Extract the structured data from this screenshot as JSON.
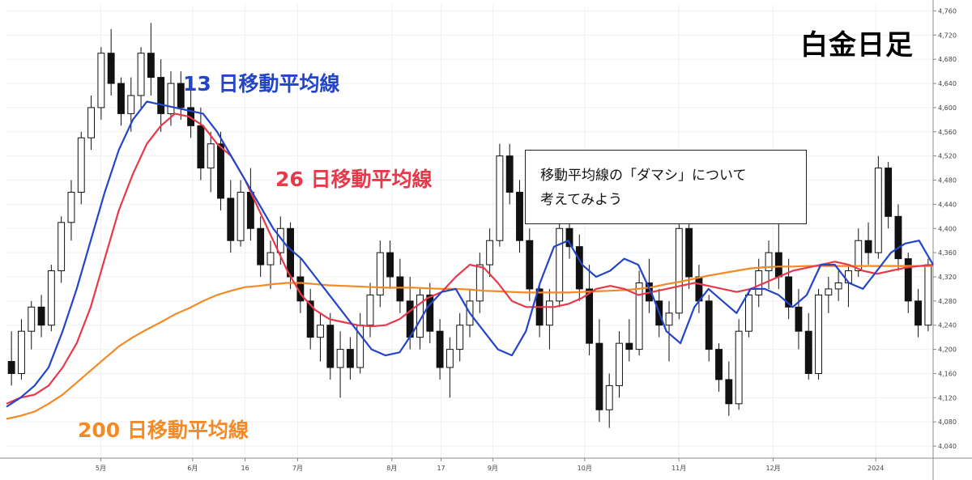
{
  "title": "白金日足",
  "ma_labels": {
    "ma13": "13 日移動平均線",
    "ma26": "26 日移動平均線",
    "ma200": "200 日移動平均線"
  },
  "callout": {
    "line1": "移動平均線の「ダマシ」について",
    "line2": "考えてみよう"
  },
  "colors": {
    "ma13": "#2445c8",
    "ma26": "#e8394a",
    "ma200": "#f28a26",
    "candle": "#111111"
  },
  "chart_data": {
    "type": "line",
    "ylim": [
      4020,
      4770
    ],
    "y_ticks": [
      4040,
      4080,
      4120,
      4160,
      4200,
      4240,
      4280,
      4320,
      4360,
      4400,
      4440,
      4480,
      4520,
      4560,
      4600,
      4640,
      4680,
      4720,
      4760
    ],
    "y_tick_labels": [
      "4,040",
      "4,080",
      "4,120",
      "4,160",
      "4,200",
      "4,240",
      "4,280",
      "4,320",
      "4,360",
      "4,400",
      "4,440",
      "4,480",
      "4,520",
      "4,560",
      "4,600",
      "4,640",
      "4,680",
      "4,720",
      "4,760"
    ],
    "x_ticks": [
      {
        "label": "5月",
        "pos": 0.1018
      },
      {
        "label": "6月",
        "pos": 0.2009
      },
      {
        "label": "16",
        "pos": 0.2575
      },
      {
        "label": "7月",
        "pos": 0.3142
      },
      {
        "label": "8月",
        "pos": 0.4159
      },
      {
        "label": "17",
        "pos": 0.469
      },
      {
        "label": "9月",
        "pos": 0.5248
      },
      {
        "label": "10月",
        "pos": 0.6239
      },
      {
        "label": "11月",
        "pos": 0.7257
      },
      {
        "label": "12月",
        "pos": 0.8274
      },
      {
        "label": "2024",
        "pos": 0.9381
      }
    ],
    "series": [
      {
        "key": "ma13",
        "values": [
          4105,
          4120,
          4140,
          4170,
          4230,
          4300,
          4380,
          4460,
          4530,
          4580,
          4610,
          4605,
          4600,
          4595,
          4590,
          4560,
          4520,
          4480,
          4440,
          4400,
          4370,
          4350,
          4320,
          4290,
          4260,
          4230,
          4200,
          4190,
          4195,
          4230,
          4270,
          4295,
          4300,
          4260,
          4230,
          4200,
          4190,
          4230,
          4310,
          4370,
          4380,
          4340,
          4320,
          4330,
          4350,
          4340,
          4290,
          4230,
          4210,
          4270,
          4300,
          4280,
          4260,
          4300,
          4300,
          4290,
          4270,
          4290,
          4340,
          4340,
          4310,
          4300,
          4330,
          4360,
          4375,
          4380,
          4340
        ]
      },
      {
        "key": "ma26",
        "values": [
          4110,
          4120,
          4125,
          4140,
          4170,
          4210,
          4270,
          4350,
          4430,
          4490,
          4540,
          4570,
          4590,
          4585,
          4570,
          4540,
          4520,
          4480,
          4430,
          4380,
          4330,
          4290,
          4265,
          4250,
          4245,
          4240,
          4238,
          4240,
          4250,
          4268,
          4285,
          4295,
          4320,
          4340,
          4335,
          4310,
          4280,
          4270,
          4270,
          4270,
          4275,
          4285,
          4300,
          4305,
          4300,
          4290,
          4295,
          4300,
          4305,
          4310,
          4305,
          4300,
          4295,
          4300,
          4310,
          4320,
          4330,
          4335,
          4340,
          4345,
          4340,
          4330,
          4325,
          4330,
          4335,
          4338,
          4340
        ]
      },
      {
        "key": "ma200",
        "values": [
          4085,
          4090,
          4097,
          4110,
          4125,
          4145,
          4165,
          4185,
          4205,
          4220,
          4233,
          4245,
          4258,
          4268,
          4280,
          4290,
          4297,
          4303,
          4305,
          4308,
          4310,
          4310,
          4308,
          4306,
          4305,
          4304,
          4303,
          4302,
          4302,
          4302,
          4301,
          4300,
          4300,
          4299,
          4297,
          4296,
          4295,
          4294,
          4294,
          4294,
          4294,
          4295,
          4296,
          4297,
          4298,
          4300,
          4303,
          4308,
          4312,
          4317,
          4322,
          4326,
          4330,
          4334,
          4336,
          4337,
          4337,
          4338,
          4338,
          4338,
          4338,
          4338,
          4338,
          4338,
          4338,
          4338,
          4338
        ]
      }
    ],
    "candles": [
      [
        4180,
        4230,
        4140,
        4160
      ],
      [
        4160,
        4250,
        4150,
        4230
      ],
      [
        4230,
        4280,
        4200,
        4270
      ],
      [
        4270,
        4290,
        4220,
        4240
      ],
      [
        4240,
        4340,
        4230,
        4330
      ],
      [
        4330,
        4420,
        4310,
        4410
      ],
      [
        4410,
        4480,
        4380,
        4460
      ],
      [
        4460,
        4560,
        4440,
        4550
      ],
      [
        4550,
        4620,
        4530,
        4600
      ],
      [
        4600,
        4700,
        4580,
        4690
      ],
      [
        4690,
        4730,
        4620,
        4640
      ],
      [
        4640,
        4650,
        4570,
        4590
      ],
      [
        4590,
        4650,
        4560,
        4620
      ],
      [
        4620,
        4700,
        4600,
        4690
      ],
      [
        4690,
        4740,
        4620,
        4650
      ],
      [
        4650,
        4680,
        4560,
        4590
      ],
      [
        4590,
        4660,
        4570,
        4640
      ],
      [
        4640,
        4660,
        4580,
        4600
      ],
      [
        4600,
        4640,
        4550,
        4570
      ],
      [
        4570,
        4600,
        4480,
        4500
      ],
      [
        4500,
        4560,
        4460,
        4540
      ],
      [
        4540,
        4560,
        4430,
        4450
      ],
      [
        4450,
        4480,
        4360,
        4380
      ],
      [
        4380,
        4480,
        4370,
        4460
      ],
      [
        4460,
        4500,
        4380,
        4400
      ],
      [
        4400,
        4420,
        4320,
        4340
      ],
      [
        4340,
        4380,
        4300,
        4360
      ],
      [
        4360,
        4420,
        4340,
        4400
      ],
      [
        4400,
        4410,
        4300,
        4320
      ],
      [
        4320,
        4350,
        4260,
        4280
      ],
      [
        4280,
        4300,
        4200,
        4220
      ],
      [
        4220,
        4260,
        4180,
        4240
      ],
      [
        4240,
        4260,
        4150,
        4170
      ],
      [
        4170,
        4230,
        4120,
        4200
      ],
      [
        4200,
        4220,
        4150,
        4170
      ],
      [
        4170,
        4260,
        4160,
        4240
      ],
      [
        4240,
        4310,
        4220,
        4290
      ],
      [
        4290,
        4380,
        4270,
        4360
      ],
      [
        4360,
        4380,
        4300,
        4320
      ],
      [
        4320,
        4350,
        4260,
        4280
      ],
      [
        4280,
        4320,
        4200,
        4220
      ],
      [
        4220,
        4300,
        4200,
        4290
      ],
      [
        4290,
        4310,
        4210,
        4230
      ],
      [
        4230,
        4250,
        4150,
        4170
      ],
      [
        4170,
        4220,
        4120,
        4200
      ],
      [
        4200,
        4260,
        4180,
        4240
      ],
      [
        4240,
        4300,
        4220,
        4280
      ],
      [
        4280,
        4360,
        4260,
        4340
      ],
      [
        4340,
        4400,
        4320,
        4380
      ],
      [
        4380,
        4540,
        4370,
        4520
      ],
      [
        4520,
        4540,
        4440,
        4460
      ],
      [
        4460,
        4480,
        4360,
        4380
      ],
      [
        4380,
        4400,
        4280,
        4300
      ],
      [
        4300,
        4310,
        4220,
        4240
      ],
      [
        4240,
        4300,
        4200,
        4280
      ],
      [
        4280,
        4420,
        4270,
        4400
      ],
      [
        4400,
        4440,
        4350,
        4370
      ],
      [
        4370,
        4390,
        4280,
        4300
      ],
      [
        4300,
        4340,
        4190,
        4210
      ],
      [
        4210,
        4250,
        4080,
        4100
      ],
      [
        4100,
        4160,
        4070,
        4140
      ],
      [
        4140,
        4230,
        4120,
        4210
      ],
      [
        4210,
        4250,
        4180,
        4200
      ],
      [
        4200,
        4330,
        4190,
        4310
      ],
      [
        4310,
        4350,
        4260,
        4280
      ],
      [
        4280,
        4300,
        4220,
        4240
      ],
      [
        4240,
        4280,
        4180,
        4260
      ],
      [
        4260,
        4420,
        4250,
        4400
      ],
      [
        4400,
        4410,
        4300,
        4320
      ],
      [
        4320,
        4340,
        4260,
        4280
      ],
      [
        4280,
        4290,
        4180,
        4200
      ],
      [
        4200,
        4210,
        4130,
        4150
      ],
      [
        4150,
        4180,
        4090,
        4110
      ],
      [
        4110,
        4250,
        4100,
        4230
      ],
      [
        4230,
        4300,
        4220,
        4290
      ],
      [
        4290,
        4350,
        4270,
        4330
      ],
      [
        4330,
        4380,
        4300,
        4360
      ],
      [
        4360,
        4410,
        4300,
        4320
      ],
      [
        4320,
        4350,
        4250,
        4270
      ],
      [
        4270,
        4300,
        4200,
        4230
      ],
      [
        4230,
        4260,
        4150,
        4160
      ],
      [
        4160,
        4300,
        4150,
        4290
      ],
      [
        4290,
        4320,
        4260,
        4300
      ],
      [
        4300,
        4330,
        4280,
        4310
      ],
      [
        4310,
        4340,
        4270,
        4330
      ],
      [
        4330,
        4400,
        4320,
        4380
      ],
      [
        4380,
        4410,
        4340,
        4360
      ],
      [
        4360,
        4520,
        4350,
        4500
      ],
      [
        4500,
        4510,
        4400,
        4420
      ],
      [
        4420,
        4440,
        4330,
        4350
      ],
      [
        4350,
        4360,
        4260,
        4280
      ],
      [
        4280,
        4300,
        4220,
        4240
      ],
      [
        4240,
        4350,
        4230,
        4340
      ]
    ]
  }
}
